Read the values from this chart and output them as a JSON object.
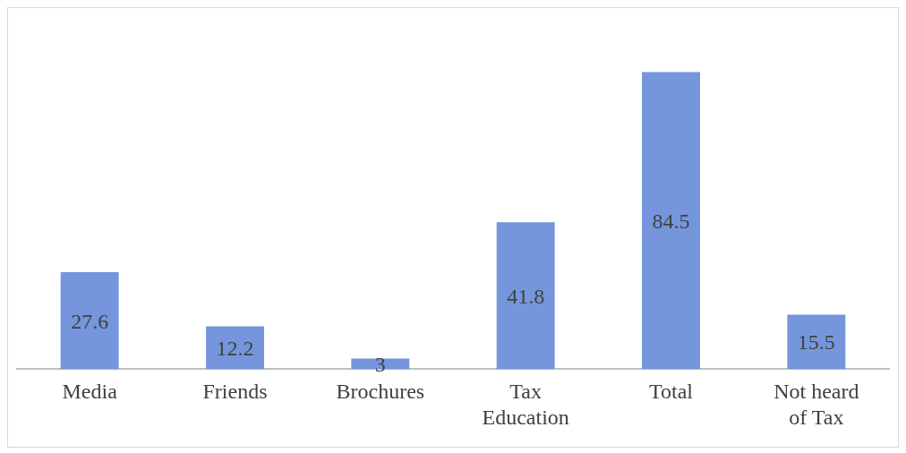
{
  "chart_data": {
    "type": "bar",
    "categories": [
      "Media",
      "Friends",
      "Brochures",
      "Tax Education",
      "Total",
      "Not heard of Tax"
    ],
    "values": [
      27.6,
      12.2,
      3,
      41.8,
      84.5,
      15.5
    ],
    "color": "#7596dc",
    "data_labels": true,
    "grid": false,
    "legend": false
  }
}
